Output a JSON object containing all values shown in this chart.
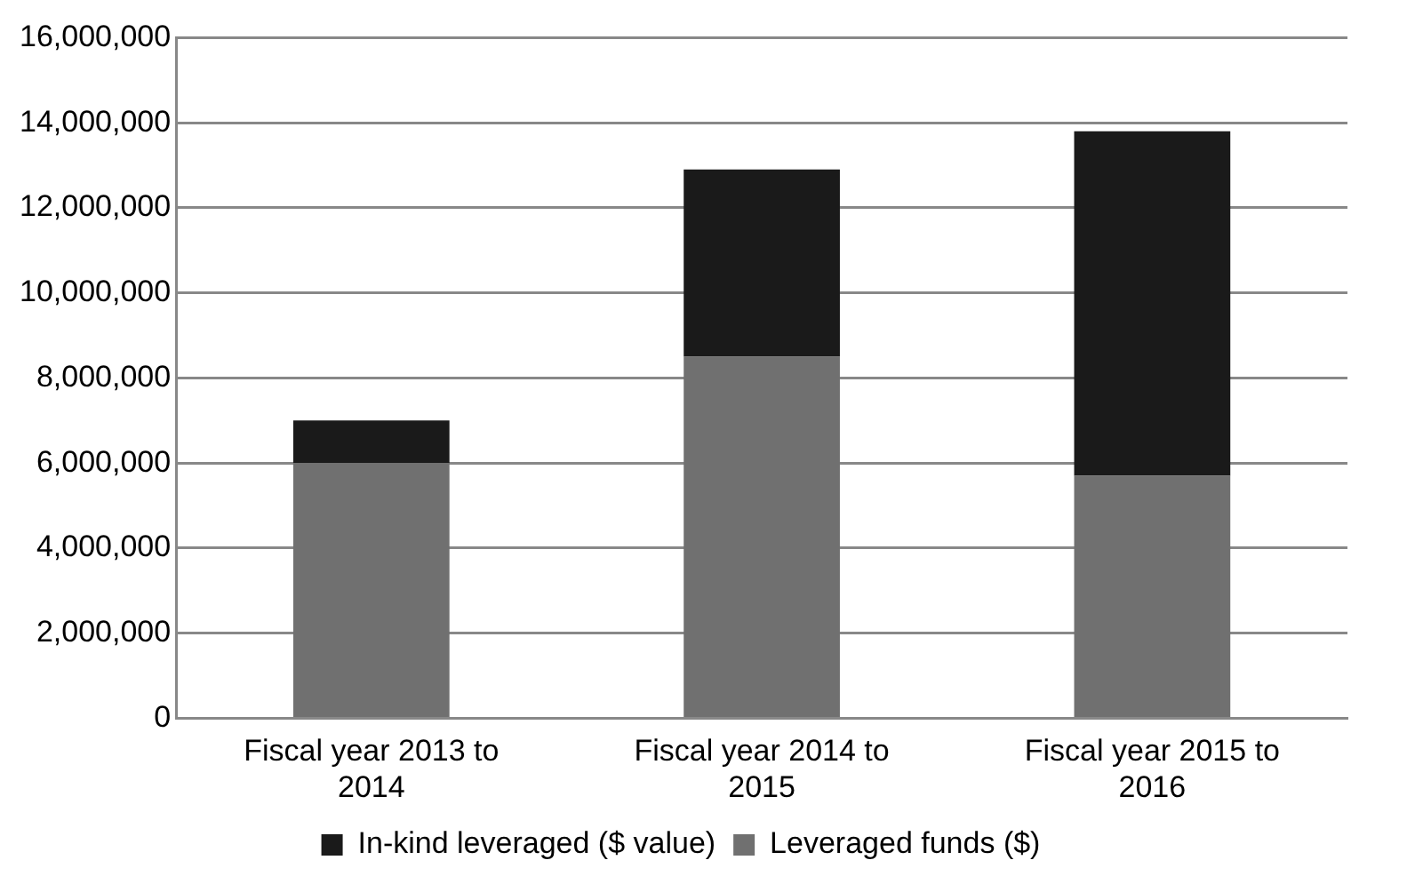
{
  "chart_data": {
    "type": "bar",
    "stacked": true,
    "categories": [
      "Fiscal year 2013 to 2014",
      "Fiscal year 2014 to 2015",
      "Fiscal year 2015 to 2016"
    ],
    "series": [
      {
        "name": "Leveraged funds ($)",
        "color": "#707070",
        "values": [
          6000000,
          8500000,
          5700000
        ]
      },
      {
        "name": "In-kind leveraged ($ value)",
        "color": "#1a1a1a",
        "values": [
          1000000,
          4400000,
          8100000
        ]
      }
    ],
    "ylim": [
      0,
      16000000
    ],
    "yticks": [
      0,
      {
        "value": 2000000,
        "label": "2,000,000"
      },
      {
        "value": 4000000,
        "label": "4,000,000"
      },
      {
        "value": 6000000,
        "label": "6,000,000"
      },
      {
        "value": 8000000,
        "label": "8,000,000"
      },
      {
        "value": 10000000,
        "label": "10,000,000"
      },
      {
        "value": 12000000,
        "label": "12,000,000"
      },
      {
        "value": 14000000,
        "label": "14,000,000"
      },
      {
        "value": 16000000,
        "label": "16,000,000"
      }
    ],
    "grid": "y",
    "legend": "bottom"
  }
}
